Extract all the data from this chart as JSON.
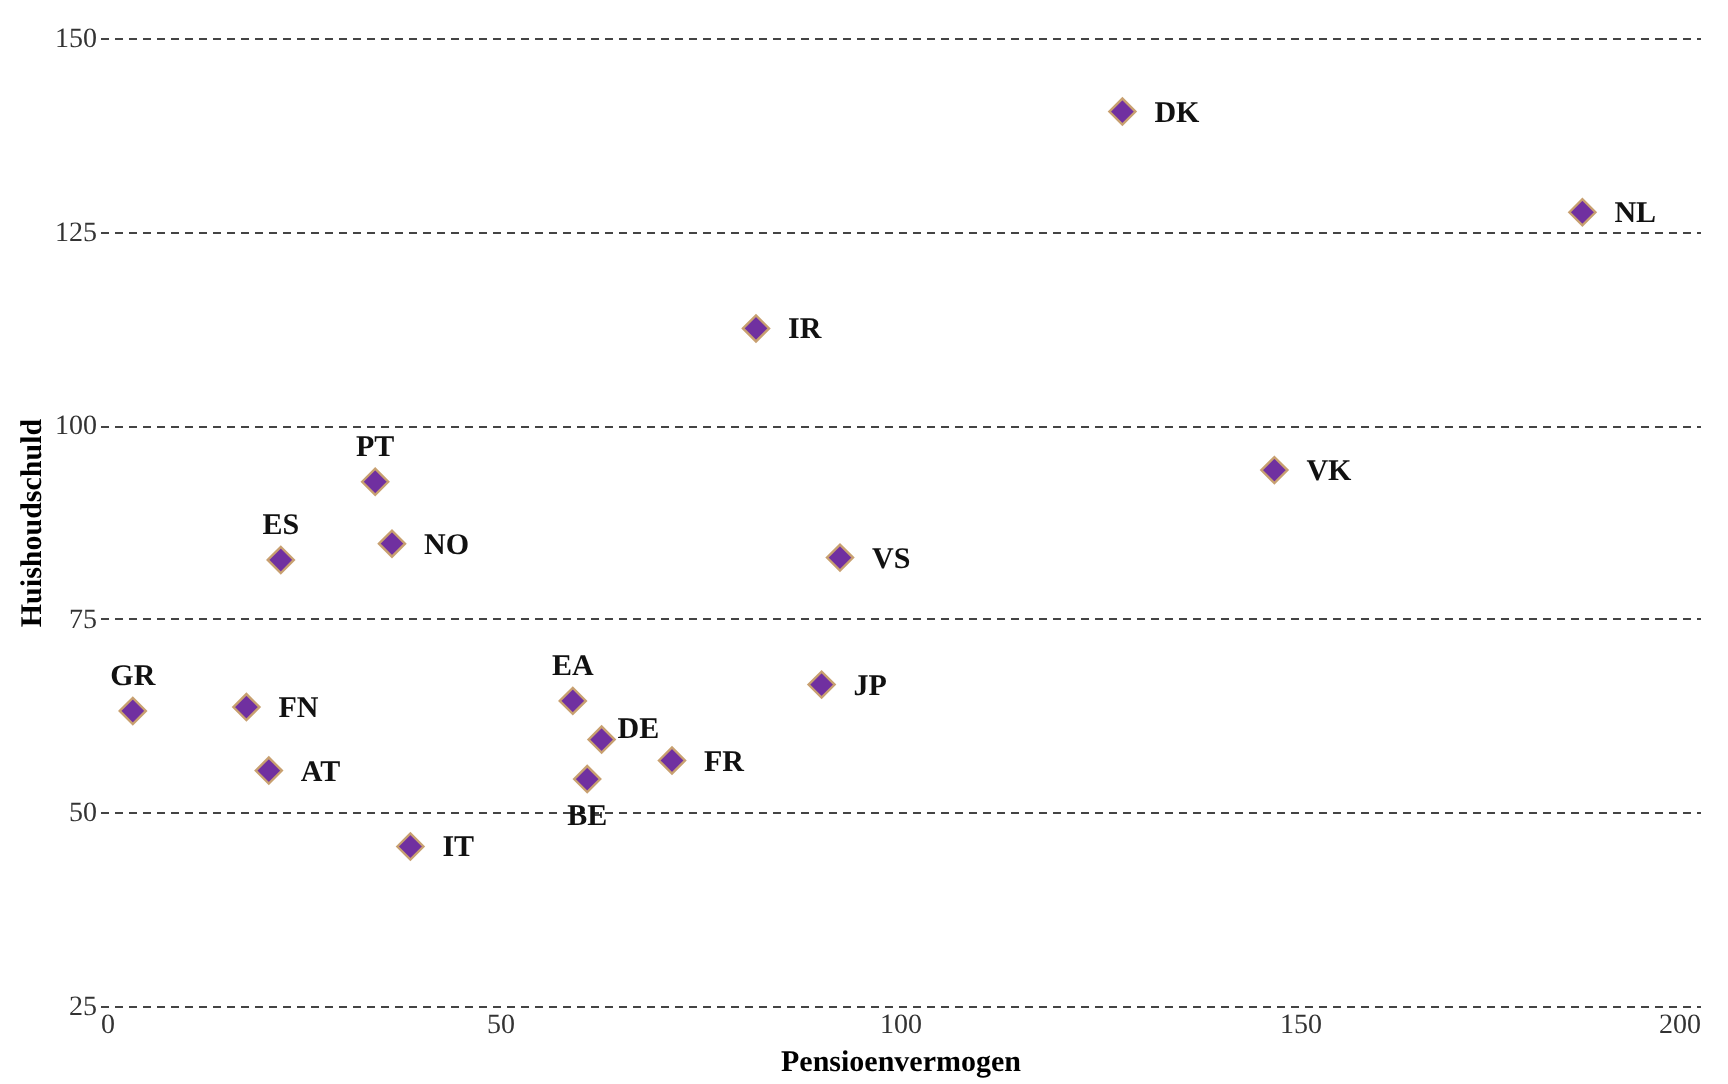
{
  "chart_data": {
    "type": "scatter",
    "xlabel": "Pensioenvermogen",
    "ylabel": "Huishoudschuld",
    "xlim": [
      0,
      200
    ],
    "xticks": [
      0,
      50,
      100,
      150,
      200
    ],
    "ylim": [
      25,
      150
    ],
    "yticks": [
      25,
      50,
      75,
      100,
      125,
      150
    ],
    "grid": "y",
    "marker": "diamond",
    "legend": false,
    "series": [
      {
        "name": "DK",
        "color": "#7030a0",
        "x": [
          127.8
        ],
        "values": [
          140.5
        ]
      },
      {
        "name": "NL",
        "color": "#7030a0",
        "x": [
          185.3
        ],
        "values": [
          127.5
        ]
      },
      {
        "name": "IR",
        "color": "#7030a0",
        "x": [
          82
        ],
        "values": [
          112.5
        ]
      },
      {
        "name": "VK",
        "color": "#7030a0",
        "x": [
          146.8
        ],
        "values": [
          94.2
        ]
      },
      {
        "name": "PT",
        "color": "#7030a0",
        "x": [
          34.4
        ],
        "values": [
          92.7
        ]
      },
      {
        "name": "ES",
        "color": "#7030a0",
        "x": [
          22.6
        ],
        "values": [
          82.6
        ]
      },
      {
        "name": "NO",
        "color": "#7030a0",
        "x": [
          36.5
        ],
        "values": [
          84.7
        ]
      },
      {
        "name": "VS",
        "color": "#7030a0",
        "x": [
          92.5
        ],
        "values": [
          82.9
        ]
      },
      {
        "name": "GR",
        "color": "#7030a0",
        "x": [
          4.1
        ],
        "values": [
          63.1
        ]
      },
      {
        "name": "FN",
        "color": "#7030a0",
        "x": [
          18.3
        ],
        "values": [
          63.6
        ]
      },
      {
        "name": "EA",
        "color": "#7030a0",
        "x": [
          59.1
        ],
        "values": [
          64.4
        ]
      },
      {
        "name": "DE",
        "color": "#7030a0",
        "x": [
          62.7
        ],
        "values": [
          59.4
        ]
      },
      {
        "name": "JP",
        "color": "#7030a0",
        "x": [
          90.2
        ],
        "values": [
          66.5
        ]
      },
      {
        "name": "AT",
        "color": "#7030a0",
        "x": [
          21.1
        ],
        "values": [
          55.4
        ]
      },
      {
        "name": "BE",
        "color": "#7030a0",
        "x": [
          60.9
        ],
        "values": [
          54.3
        ]
      },
      {
        "name": "FR",
        "color": "#7030a0",
        "x": [
          71.5
        ],
        "values": [
          56.7
        ]
      },
      {
        "name": "IT",
        "color": "#7030a0",
        "x": [
          38.8
        ],
        "values": [
          45.6
        ]
      }
    ]
  }
}
